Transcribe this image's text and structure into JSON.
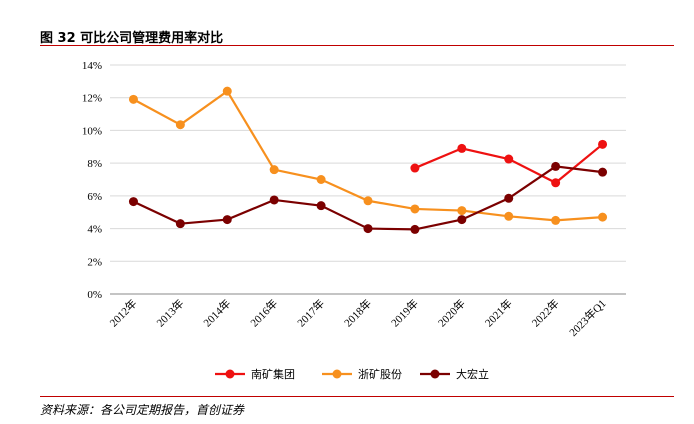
{
  "figure": {
    "title": "图 32 可比公司管理费用率对比",
    "source": "资料来源：各公司定期报告，首创证券"
  },
  "chart_data": {
    "type": "line",
    "categories": [
      "2012年",
      "2013年",
      "2014年",
      "2016年",
      "2017年",
      "2018年",
      "2019年",
      "2020年",
      "2021年",
      "2022年",
      "2023年Q1"
    ],
    "series": [
      {
        "name": "南矿集团",
        "color": "#ee1111",
        "values": [
          null,
          null,
          null,
          null,
          null,
          null,
          7.7,
          8.9,
          8.25,
          6.8,
          9.15
        ]
      },
      {
        "name": "浙矿股份",
        "color": "#f7901e",
        "values": [
          11.9,
          10.35,
          12.4,
          7.6,
          7.0,
          5.7,
          5.2,
          5.1,
          4.75,
          4.5,
          4.7
        ]
      },
      {
        "name": "大宏立",
        "color": "#7b0000",
        "values": [
          5.65,
          4.3,
          4.55,
          5.75,
          5.4,
          4.0,
          3.95,
          4.55,
          5.85,
          7.8,
          7.45
        ]
      }
    ],
    "yticks": [
      "0%",
      "2%",
      "4%",
      "6%",
      "8%",
      "10%",
      "12%",
      "14%"
    ],
    "ylim": [
      0,
      14
    ],
    "ylabel": "",
    "xlabel": "",
    "grid": "horizontal",
    "legend_position": "bottom"
  }
}
